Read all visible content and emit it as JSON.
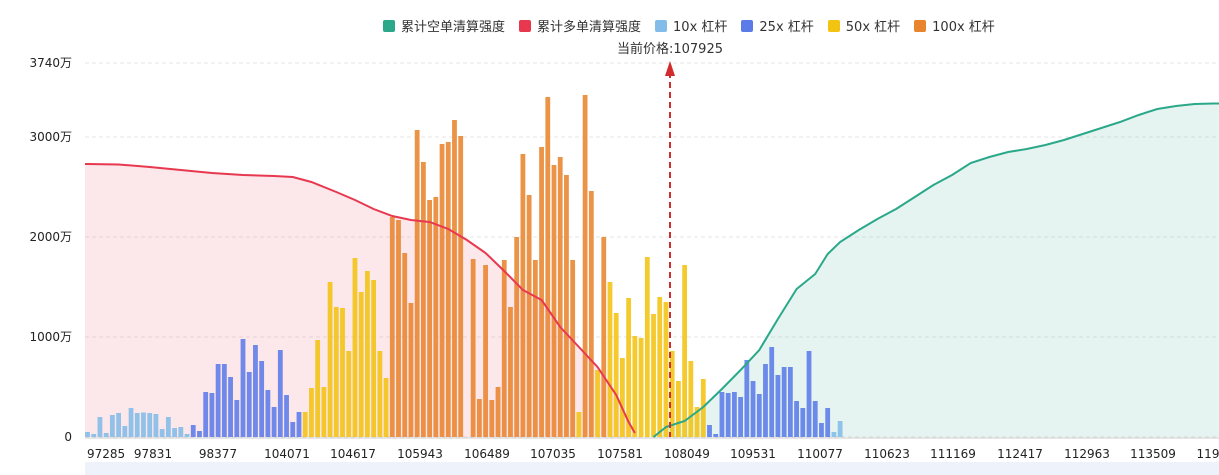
{
  "legend": [
    {
      "name": "累计空单清算强度",
      "color": "#2aa889"
    },
    {
      "name": "累计多单清算强度",
      "color": "#e8384f"
    },
    {
      "name": "10x 杠杆",
      "color": "#82bce8"
    },
    {
      "name": "25x 杠杆",
      "color": "#5b7be8"
    },
    {
      "name": "50x 杠杆",
      "color": "#f2c311"
    },
    {
      "name": "100x 杠杆",
      "color": "#e8842e"
    }
  ],
  "current_price_label": "当前价格:107925",
  "chart_data": {
    "type": "bar",
    "ylim": [
      0,
      3740
    ],
    "y_ticks": [
      {
        "value": 0,
        "label": "0"
      },
      {
        "value": 1000,
        "label": "1000万"
      },
      {
        "value": 2000,
        "label": "2000万"
      },
      {
        "value": 3000,
        "label": "3000万"
      },
      {
        "value": 3740,
        "label": "3740万"
      }
    ],
    "x_tick_labels": [
      "97285",
      "97831",
      "98377",
      "104071",
      "104617",
      "105943",
      "106489",
      "107035",
      "107581",
      "108049",
      "109531",
      "110077",
      "110623",
      "111169",
      "112417",
      "112963",
      "113509",
      "119"
    ],
    "current_price": 107925,
    "bars": [
      {
        "v": 50,
        "s": "10x"
      },
      {
        "v": 30,
        "s": "10x"
      },
      {
        "v": 200,
        "s": "10x"
      },
      {
        "v": 40,
        "s": "10x"
      },
      {
        "v": 220,
        "s": "10x"
      },
      {
        "v": 240,
        "s": "10x"
      },
      {
        "v": 110,
        "s": "10x"
      },
      {
        "v": 290,
        "s": "10x"
      },
      {
        "v": 240,
        "s": "10x"
      },
      {
        "v": 245,
        "s": "10x"
      },
      {
        "v": 240,
        "s": "10x"
      },
      {
        "v": 230,
        "s": "10x"
      },
      {
        "v": 80,
        "s": "10x"
      },
      {
        "v": 200,
        "s": "10x"
      },
      {
        "v": 90,
        "s": "10x"
      },
      {
        "v": 100,
        "s": "10x"
      },
      {
        "v": 30,
        "s": "10x"
      },
      {
        "v": 120,
        "s": "25x"
      },
      {
        "v": 60,
        "s": "25x"
      },
      {
        "v": 450,
        "s": "25x"
      },
      {
        "v": 440,
        "s": "25x"
      },
      {
        "v": 730,
        "s": "25x"
      },
      {
        "v": 730,
        "s": "25x"
      },
      {
        "v": 600,
        "s": "25x"
      },
      {
        "v": 370,
        "s": "25x"
      },
      {
        "v": 980,
        "s": "25x"
      },
      {
        "v": 650,
        "s": "25x"
      },
      {
        "v": 920,
        "s": "25x"
      },
      {
        "v": 760,
        "s": "25x"
      },
      {
        "v": 470,
        "s": "25x"
      },
      {
        "v": 300,
        "s": "25x"
      },
      {
        "v": 870,
        "s": "25x"
      },
      {
        "v": 420,
        "s": "25x"
      },
      {
        "v": 150,
        "s": "25x"
      },
      {
        "v": 250,
        "s": "25x"
      },
      {
        "v": 250,
        "s": "50x"
      },
      {
        "v": 490,
        "s": "50x"
      },
      {
        "v": 970,
        "s": "50x"
      },
      {
        "v": 500,
        "s": "50x"
      },
      {
        "v": 1550,
        "s": "50x"
      },
      {
        "v": 1300,
        "s": "50x"
      },
      {
        "v": 1290,
        "s": "50x"
      },
      {
        "v": 860,
        "s": "50x"
      },
      {
        "v": 1790,
        "s": "50x"
      },
      {
        "v": 1450,
        "s": "50x"
      },
      {
        "v": 1660,
        "s": "50x"
      },
      {
        "v": 1570,
        "s": "50x"
      },
      {
        "v": 860,
        "s": "50x"
      },
      {
        "v": 590,
        "s": "50x"
      },
      {
        "v": 2200,
        "s": "100x"
      },
      {
        "v": 2170,
        "s": "100x"
      },
      {
        "v": 1840,
        "s": "100x"
      },
      {
        "v": 1340,
        "s": "100x"
      },
      {
        "v": 3070,
        "s": "100x"
      },
      {
        "v": 2750,
        "s": "100x"
      },
      {
        "v": 2370,
        "s": "100x"
      },
      {
        "v": 2400,
        "s": "100x"
      },
      {
        "v": 2930,
        "s": "100x"
      },
      {
        "v": 2950,
        "s": "100x"
      },
      {
        "v": 3170,
        "s": "100x"
      },
      {
        "v": 3010,
        "s": "100x"
      },
      {
        "v": 0,
        "s": "100x"
      },
      {
        "v": 1780,
        "s": "100x"
      },
      {
        "v": 380,
        "s": "100x"
      },
      {
        "v": 1720,
        "s": "100x"
      },
      {
        "v": 370,
        "s": "100x"
      },
      {
        "v": 500,
        "s": "100x"
      },
      {
        "v": 1770,
        "s": "100x"
      },
      {
        "v": 1300,
        "s": "100x"
      },
      {
        "v": 2000,
        "s": "100x"
      },
      {
        "v": 2830,
        "s": "100x"
      },
      {
        "v": 2420,
        "s": "100x"
      },
      {
        "v": 1770,
        "s": "100x"
      },
      {
        "v": 2900,
        "s": "100x"
      },
      {
        "v": 3400,
        "s": "100x"
      },
      {
        "v": 2720,
        "s": "100x"
      },
      {
        "v": 2800,
        "s": "100x"
      },
      {
        "v": 2620,
        "s": "100x"
      },
      {
        "v": 1770,
        "s": "100x"
      },
      {
        "v": 250,
        "s": "50x"
      },
      {
        "v": 3420,
        "s": "100x"
      },
      {
        "v": 2460,
        "s": "100x"
      },
      {
        "v": 670,
        "s": "50x"
      },
      {
        "v": 2000,
        "s": "100x"
      },
      {
        "v": 1550,
        "s": "50x"
      },
      {
        "v": 1240,
        "s": "50x"
      },
      {
        "v": 790,
        "s": "50x"
      },
      {
        "v": 1390,
        "s": "50x"
      },
      {
        "v": 1010,
        "s": "50x"
      },
      {
        "v": 990,
        "s": "50x"
      },
      {
        "v": 1800,
        "s": "50x"
      },
      {
        "v": 1230,
        "s": "50x"
      },
      {
        "v": 1400,
        "s": "50x"
      },
      {
        "v": 1350,
        "s": "50x"
      },
      {
        "v": 860,
        "s": "50x"
      },
      {
        "v": 560,
        "s": "50x"
      },
      {
        "v": 1720,
        "s": "50x"
      },
      {
        "v": 760,
        "s": "50x"
      },
      {
        "v": 300,
        "s": "50x"
      },
      {
        "v": 580,
        "s": "50x"
      },
      {
        "v": 120,
        "s": "25x"
      },
      {
        "v": 30,
        "s": "25x"
      },
      {
        "v": 450,
        "s": "25x"
      },
      {
        "v": 440,
        "s": "25x"
      },
      {
        "v": 450,
        "s": "25x"
      },
      {
        "v": 400,
        "s": "25x"
      },
      {
        "v": 770,
        "s": "25x"
      },
      {
        "v": 560,
        "s": "25x"
      },
      {
        "v": 430,
        "s": "25x"
      },
      {
        "v": 730,
        "s": "25x"
      },
      {
        "v": 900,
        "s": "25x"
      },
      {
        "v": 620,
        "s": "25x"
      },
      {
        "v": 700,
        "s": "25x"
      },
      {
        "v": 700,
        "s": "25x"
      },
      {
        "v": 360,
        "s": "25x"
      },
      {
        "v": 290,
        "s": "25x"
      },
      {
        "v": 860,
        "s": "25x"
      },
      {
        "v": 360,
        "s": "25x"
      },
      {
        "v": 140,
        "s": "25x"
      },
      {
        "v": 290,
        "s": "25x"
      },
      {
        "v": 50,
        "s": "10x"
      },
      {
        "v": 160,
        "s": "10x"
      }
    ],
    "long_cumulative": [
      [
        0,
        2730
      ],
      [
        5,
        2725
      ],
      [
        10,
        2700
      ],
      [
        15,
        2670
      ],
      [
        20,
        2640
      ],
      [
        25,
        2620
      ],
      [
        30,
        2610
      ],
      [
        33,
        2600
      ],
      [
        36,
        2550
      ],
      [
        40,
        2450
      ],
      [
        43,
        2370
      ],
      [
        46,
        2280
      ],
      [
        49,
        2210
      ],
      [
        52,
        2170
      ],
      [
        55,
        2150
      ],
      [
        58,
        2080
      ],
      [
        61,
        1970
      ],
      [
        64,
        1840
      ],
      [
        67,
        1660
      ],
      [
        70,
        1470
      ],
      [
        73,
        1370
      ],
      [
        76,
        1100
      ],
      [
        79,
        900
      ],
      [
        82,
        700
      ],
      [
        85,
        420
      ],
      [
        87,
        150
      ],
      [
        88,
        40
      ]
    ],
    "short_cumulative": [
      [
        91,
        0
      ],
      [
        93,
        100
      ],
      [
        96,
        160
      ],
      [
        99,
        300
      ],
      [
        102,
        480
      ],
      [
        105,
        670
      ],
      [
        108,
        870
      ],
      [
        111,
        1180
      ],
      [
        114,
        1480
      ],
      [
        117,
        1630
      ],
      [
        119,
        1830
      ],
      [
        121,
        1950
      ],
      [
        124,
        2070
      ],
      [
        127,
        2180
      ],
      [
        130,
        2280
      ],
      [
        133,
        2400
      ],
      [
        136,
        2520
      ],
      [
        139,
        2620
      ],
      [
        142,
        2740
      ],
      [
        145,
        2800
      ],
      [
        148,
        2850
      ],
      [
        151,
        2880
      ],
      [
        154,
        2920
      ],
      [
        157,
        2970
      ],
      [
        160,
        3030
      ],
      [
        163,
        3090
      ],
      [
        166,
        3150
      ],
      [
        169,
        3220
      ],
      [
        172,
        3280
      ],
      [
        175,
        3310
      ],
      [
        178,
        3330
      ],
      [
        181,
        3335
      ]
    ]
  }
}
